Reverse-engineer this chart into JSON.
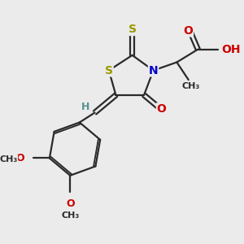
{
  "bg_color": "#ebebeb",
  "bond_color": "#2a2a2a",
  "S_color": "#999900",
  "N_color": "#0000cc",
  "O_color": "#cc0000",
  "H_color": "#5a9090",
  "lw": 1.6,
  "lw2": 1.3,
  "fs": 10,
  "fs_small": 9,
  "figsize": [
    3.0,
    3.0
  ],
  "dpi": 100,
  "xlim": [
    0,
    10
  ],
  "ylim": [
    0,
    10
  ]
}
